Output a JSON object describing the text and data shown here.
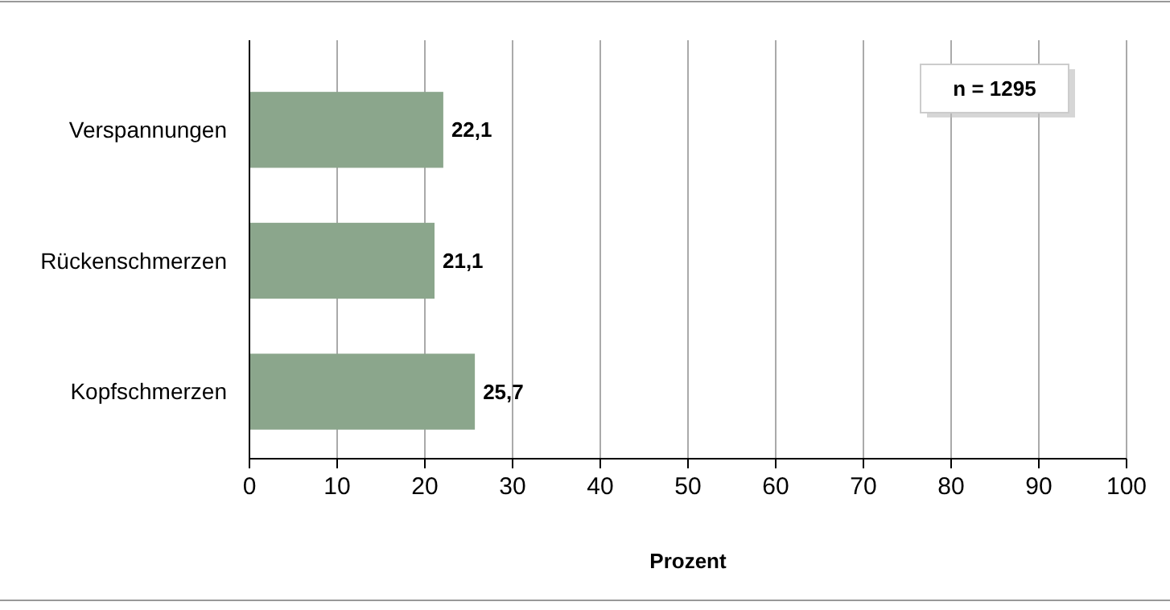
{
  "chart_data": {
    "type": "bar",
    "orientation": "horizontal",
    "xlabel": "Prozent",
    "categories": [
      "Verspannungen",
      "Rückenschmerzen",
      "Kopfschmerzen"
    ],
    "values": [
      22.1,
      21.1,
      25.7
    ],
    "color": "#8ba68c",
    "value_labels": [
      "22,1",
      "21,1",
      "25,7"
    ],
    "xlim": [
      0,
      100
    ],
    "xticks": [
      0,
      10,
      20,
      30,
      40,
      50,
      60,
      70,
      80,
      90,
      100
    ],
    "grid": "x",
    "annotations": [
      "n = 1295"
    ]
  }
}
